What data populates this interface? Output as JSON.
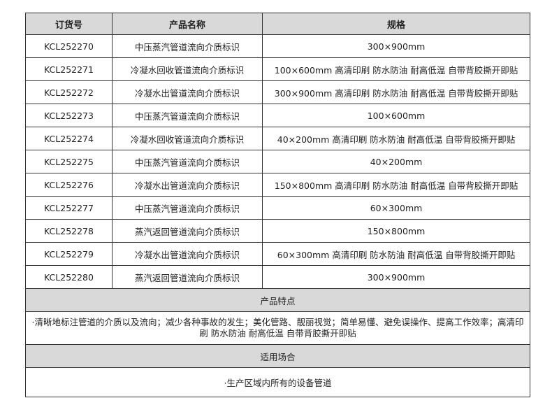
{
  "headers": {
    "order_no": "订货号",
    "product_name": "产品名称",
    "spec": "规格"
  },
  "rows": [
    {
      "order_no": "KCL252270",
      "name": "中压蒸汽管道流向介质标识",
      "spec": "300×900mm"
    },
    {
      "order_no": "KCL252271",
      "name": "冷凝水回收管道流向介质标识",
      "spec": "100×600mm 高清印刷 防水防油 耐高低温 自带背胶撕开即贴"
    },
    {
      "order_no": "KCL252272",
      "name": "冷凝水出管道流向介质标识",
      "spec": "300×900mm 高清印刷 防水防油 耐高低温 自带背胶撕开即贴"
    },
    {
      "order_no": "KCL252273",
      "name": "中压蒸汽管道流向介质标识",
      "spec": "100×600mm"
    },
    {
      "order_no": "KCL252274",
      "name": "冷凝水回收管道流向介质标识",
      "spec": "40×200mm 高清印刷 防水防油 耐高低温 自带背胶撕开即贴"
    },
    {
      "order_no": "KCL252275",
      "name": "中压蒸汽管道流向介质标识",
      "spec": "40×200mm"
    },
    {
      "order_no": "KCL252276",
      "name": "冷凝水出管道流向介质标识",
      "spec": "150×800mm 高清印刷 防水防油 耐高低温 自带背胶撕开即贴"
    },
    {
      "order_no": "KCL252277",
      "name": "中压蒸汽管道流向介质标识",
      "spec": "60×300mm"
    },
    {
      "order_no": "KCL252278",
      "name": "蒸汽返回管道流向介质标识",
      "spec": "150×800mm"
    },
    {
      "order_no": "KCL252279",
      "name": "冷凝水出管道流向介质标识",
      "spec": "60×300mm 高清印刷 防水防油 耐高低温 自带背胶撕开即贴"
    },
    {
      "order_no": "KCL252280",
      "name": "蒸汽返回管道流向介质标识",
      "spec": "300×900mm"
    }
  ],
  "features": {
    "title": "产品特点",
    "text": "·清晰地标注管道的介质以及流向；减少各种事故的发生；美化管路、靓丽视觉；简单易懂、避免误操作、提高工作效率；高清印刷 防水防油 耐高低温 自带背胶撕开即贴"
  },
  "usage": {
    "title": "适用场合",
    "text": "·生产区域内所有的设备管道"
  }
}
